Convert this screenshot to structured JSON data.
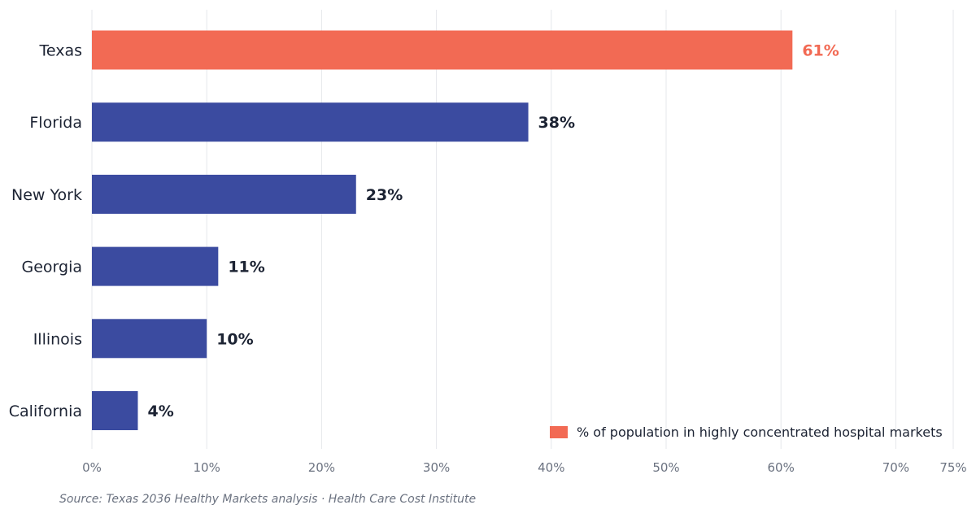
{
  "chart_data": {
    "type": "bar",
    "orientation": "horizontal",
    "categories": [
      "Texas",
      "Florida",
      "New York",
      "Georgia",
      "Illinois",
      "California"
    ],
    "values": [
      61,
      38,
      23,
      11,
      10,
      4
    ],
    "value_labels": [
      "61%",
      "38%",
      "23%",
      "11%",
      "10%",
      "4%"
    ],
    "highlight_category": "Texas",
    "series": [
      {
        "name": "% of population in highly concentrated hospital markets",
        "values": [
          61,
          38,
          23,
          11,
          10,
          4
        ]
      }
    ],
    "x_ticks": [
      0,
      10,
      20,
      30,
      40,
      50,
      60,
      70,
      75
    ],
    "x_tick_labels": [
      "0%",
      "10%",
      "20%",
      "30%",
      "40%",
      "50%",
      "60%",
      "70%",
      "75%"
    ],
    "xlim": [
      0,
      75
    ],
    "title": "",
    "xlabel": "",
    "ylabel": "",
    "grid": "vertical",
    "legend_position": "bottom-right",
    "legend_label": "% of population in highly concentrated hospital markets"
  },
  "colors": {
    "highlight": "#f26a54",
    "bar": "#3b4ba0",
    "grid": "#e5e7eb",
    "category_text": "#1c2333",
    "value_text": "#1c2333",
    "tick_text": "#6b7280",
    "source_text": "#6b7280"
  },
  "source": "Source: Texas 2036 Healthy Markets analysis · Health Care Cost Institute"
}
